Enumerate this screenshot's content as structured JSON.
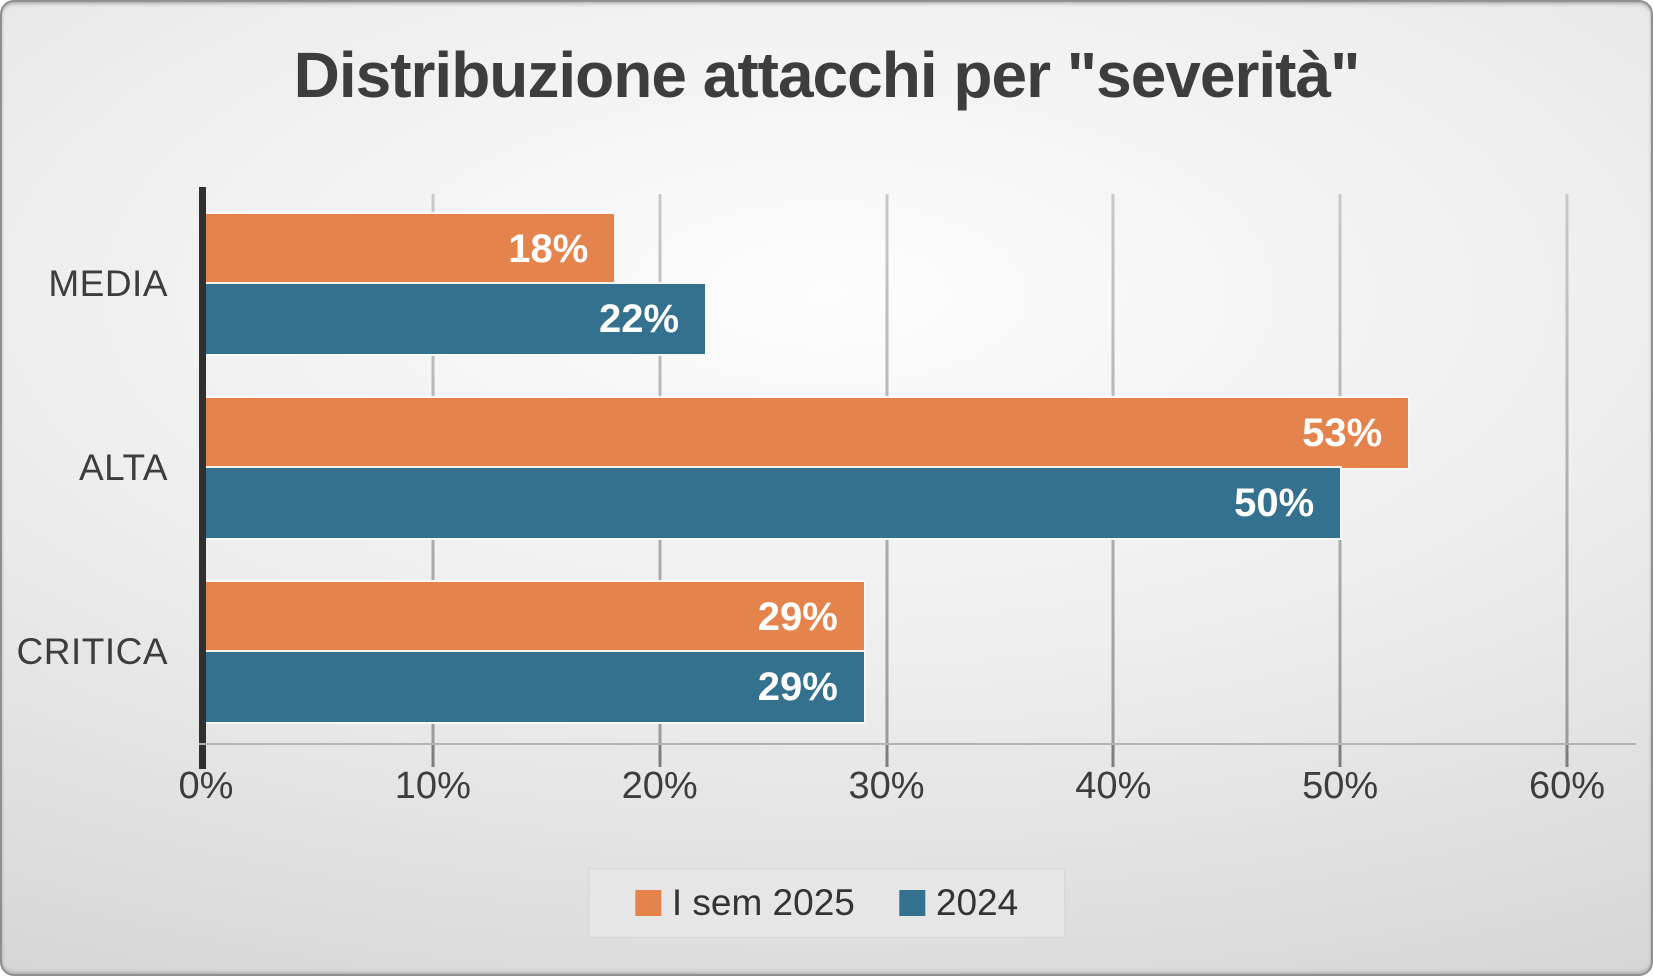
{
  "title": "Distribuzione attacchi per \"severità\"",
  "chart_data": {
    "type": "bar",
    "orientation": "horizontal",
    "title": "Distribuzione attacchi per \"severità\"",
    "categories": [
      "MEDIA",
      "ALTA",
      "CRITICA"
    ],
    "series": [
      {
        "name": "I sem 2025",
        "color": "#E5834C",
        "values": [
          18,
          53,
          29
        ]
      },
      {
        "name": "2024",
        "color": "#33718E",
        "values": [
          22,
          50,
          29
        ]
      }
    ],
    "value_suffix": "%",
    "data_labels": [
      "18%",
      "22%",
      "53%",
      "50%",
      "29%",
      "29%"
    ],
    "xlim": [
      0,
      60
    ],
    "x_tick_labels": [
      "0%",
      "10%",
      "20%",
      "30%",
      "40%",
      "50%",
      "60%"
    ],
    "grid": true,
    "legend_position": "bottom-center",
    "data_label_position": "inside-end"
  },
  "colors": {
    "title_text": "#3D3D3D",
    "axis_text": "#3D3D3D",
    "data_label_text": "#FFFFFF",
    "axis_line": "#303030",
    "baseline": "#B3B3B3",
    "tick": "#7E7E7E",
    "legend_bg": "#E6E6E6",
    "legend_border": "#D3D3D3"
  }
}
